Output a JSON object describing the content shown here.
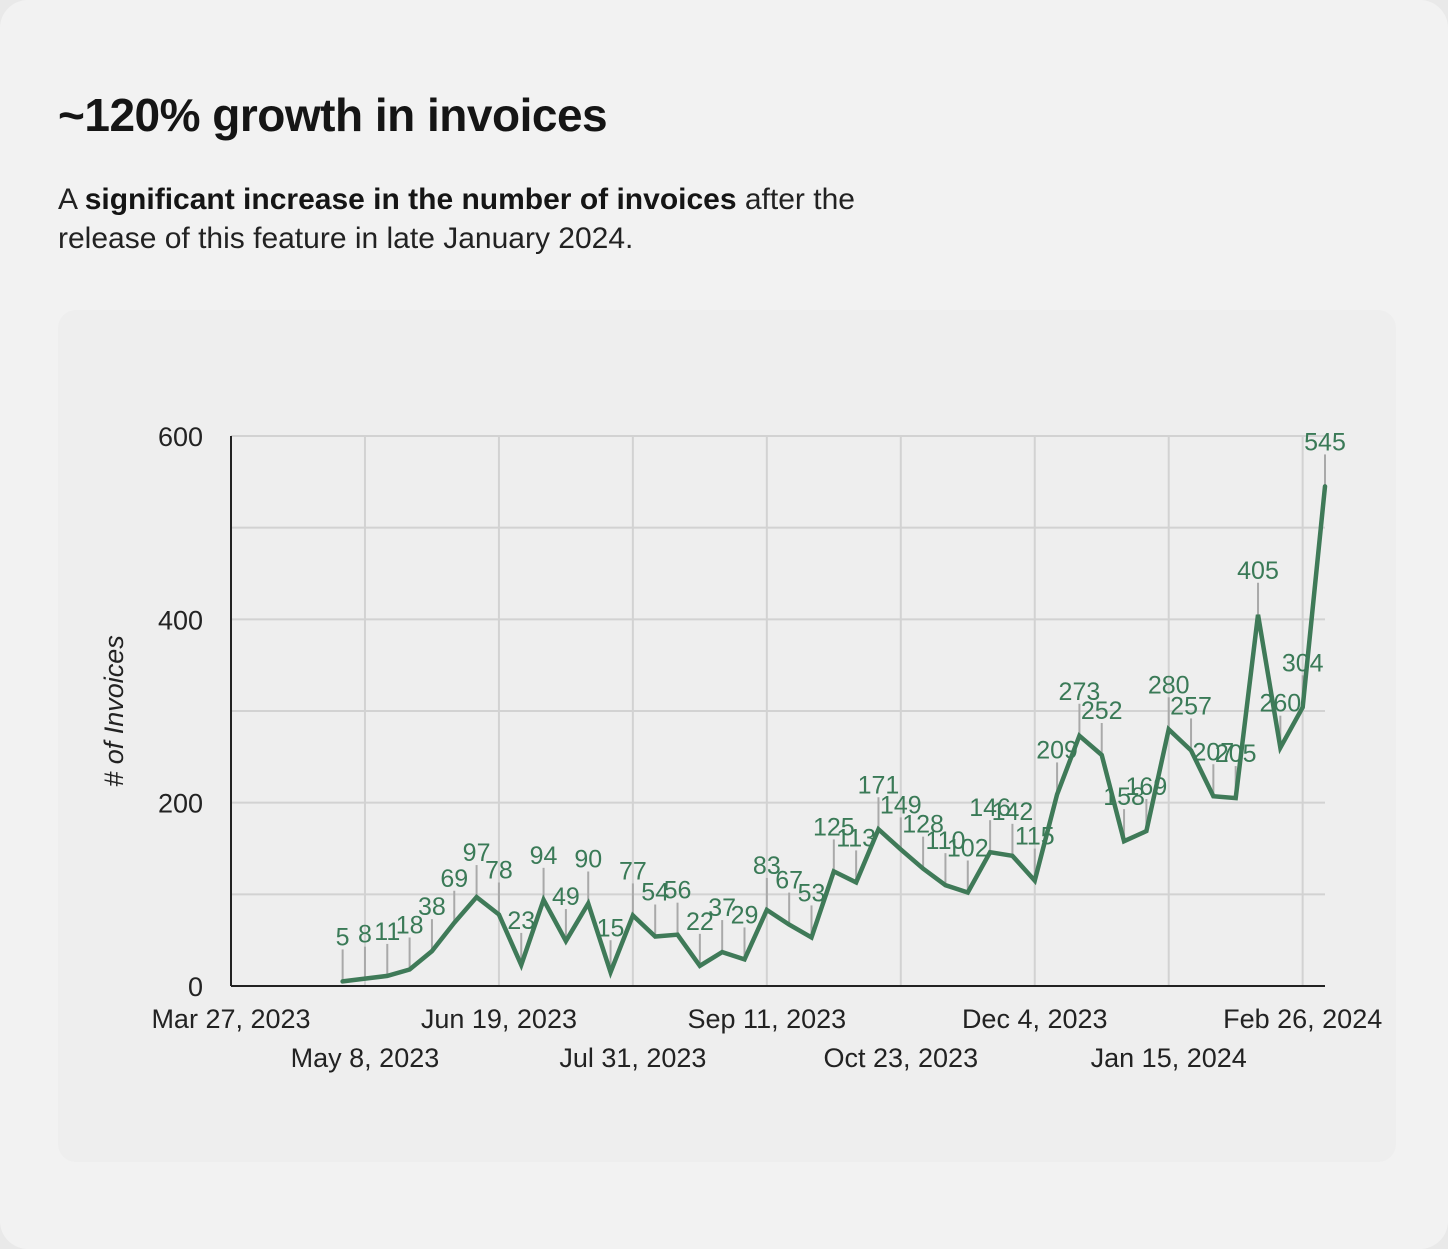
{
  "header": {
    "title": "~120% growth in invoices",
    "subtitle_pre": "A ",
    "subtitle_bold": "significant increase in the number of invoices",
    "subtitle_post": " after the release of this feature in late January 2024."
  },
  "chart_data": {
    "type": "line",
    "title": "",
    "xlabel": "",
    "ylabel": "# of Invoices",
    "ylim": [
      0,
      600
    ],
    "y_ticks": [
      0,
      200,
      400,
      600
    ],
    "x_tick_labels": [
      {
        "label": "Mar 27, 2023",
        "week": 0,
        "row": 0
      },
      {
        "label": "May 8, 2023",
        "week": 6,
        "row": 1
      },
      {
        "label": "Jun 19, 2023",
        "week": 12,
        "row": 0
      },
      {
        "label": "Jul 31, 2023",
        "week": 18,
        "row": 1
      },
      {
        "label": "Sep 11, 2023",
        "week": 24,
        "row": 0
      },
      {
        "label": "Oct 23, 2023",
        "week": 30,
        "row": 1
      },
      {
        "label": "Dec 4, 2023",
        "week": 36,
        "row": 0
      },
      {
        "label": "Jan 15, 2024",
        "week": 42,
        "row": 1
      },
      {
        "label": "Feb 26, 2024",
        "week": 48,
        "row": 0
      }
    ],
    "x_start_week": 0,
    "x_end_week": 49,
    "grid": true,
    "series": [
      {
        "name": "# of Invoices",
        "color": "#3f7a58",
        "start_week": 5,
        "values": [
          5,
          8,
          11,
          18,
          38,
          69,
          97,
          78,
          23,
          94,
          49,
          90,
          15,
          77,
          54,
          56,
          22,
          37,
          29,
          83,
          67,
          53,
          125,
          113,
          171,
          149,
          128,
          110,
          102,
          146,
          142,
          115,
          209,
          273,
          252,
          158,
          169,
          280,
          257,
          207,
          205,
          405,
          260,
          304,
          545
        ]
      }
    ]
  },
  "colors": {
    "line": "#3f7a58",
    "label": "#3a7a57",
    "grid": "#d2d2d2",
    "leader": "#a9a9a9"
  }
}
